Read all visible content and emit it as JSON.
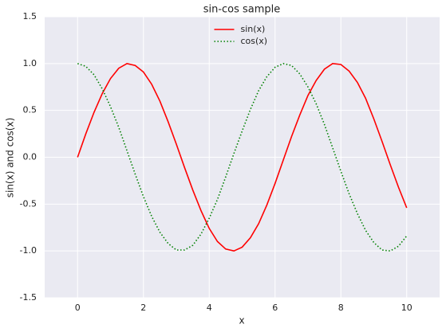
{
  "chart_data": {
    "type": "line",
    "title": "sin-cos sample",
    "x_label": "x",
    "y_label": "sin(x) and cos(x)",
    "x": [
      0,
      0.25,
      0.5,
      0.75,
      1,
      1.25,
      1.5,
      1.75,
      2,
      2.25,
      2.5,
      2.75,
      3,
      3.25,
      3.5,
      3.75,
      4,
      4.25,
      4.5,
      4.75,
      5,
      5.25,
      5.5,
      5.75,
      6,
      6.25,
      6.5,
      6.75,
      7,
      7.25,
      7.5,
      7.75,
      8,
      8.25,
      8.5,
      8.75,
      9,
      9.25,
      9.5,
      9.75,
      10
    ],
    "series": [
      {
        "name": "sin(x)",
        "color": "#ff0000",
        "linestyle": "solid",
        "values": [
          0,
          0.25,
          0.48,
          0.68,
          0.84,
          0.95,
          1.0,
          0.98,
          0.91,
          0.78,
          0.6,
          0.38,
          0.14,
          -0.11,
          -0.35,
          -0.57,
          -0.76,
          -0.9,
          -0.98,
          -1.0,
          -0.96,
          -0.86,
          -0.71,
          -0.51,
          -0.28,
          -0.03,
          0.22,
          0.45,
          0.66,
          0.82,
          0.94,
          1.0,
          0.99,
          0.92,
          0.8,
          0.63,
          0.41,
          0.17,
          -0.08,
          -0.32,
          -0.54
        ]
      },
      {
        "name": "cos(x)",
        "color": "#008000",
        "linestyle": "dotted",
        "values": [
          1.0,
          0.97,
          0.88,
          0.73,
          0.54,
          0.32,
          0.07,
          -0.18,
          -0.42,
          -0.63,
          -0.8,
          -0.92,
          -0.99,
          -0.99,
          -0.94,
          -0.82,
          -0.65,
          -0.45,
          -0.21,
          0.04,
          0.28,
          0.51,
          0.71,
          0.86,
          0.96,
          1.0,
          0.98,
          0.89,
          0.75,
          0.57,
          0.35,
          0.1,
          -0.15,
          -0.39,
          -0.6,
          -0.78,
          -0.91,
          -0.99,
          -1.0,
          -0.95,
          -0.84
        ]
      }
    ],
    "xlim": [
      -1,
      11
    ],
    "ylim": [
      -1.5,
      1.5
    ],
    "xticks": [
      0,
      2,
      4,
      6,
      8,
      10
    ],
    "yticks": [
      -1.5,
      {
        "value": -1,
        "label": "-1.0"
      },
      -0.5,
      {
        "value": 0,
        "label": "0.0"
      },
      0.5,
      {
        "value": 1,
        "label": "1.0"
      },
      1.5
    ],
    "grid": true,
    "legend": "upper center"
  }
}
